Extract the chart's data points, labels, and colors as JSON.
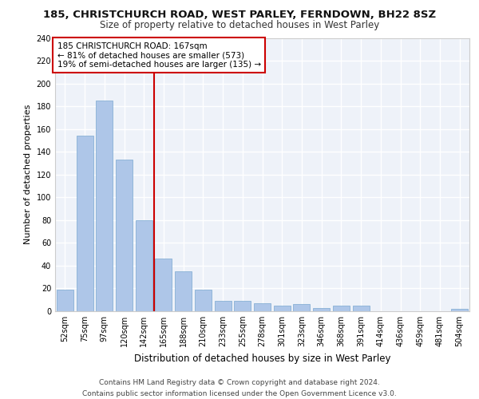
{
  "title_line1": "185, CHRISTCHURCH ROAD, WEST PARLEY, FERNDOWN, BH22 8SZ",
  "title_line2": "Size of property relative to detached houses in West Parley",
  "xlabel": "Distribution of detached houses by size in West Parley",
  "ylabel": "Number of detached properties",
  "categories": [
    "52sqm",
    "75sqm",
    "97sqm",
    "120sqm",
    "142sqm",
    "165sqm",
    "188sqm",
    "210sqm",
    "233sqm",
    "255sqm",
    "278sqm",
    "301sqm",
    "323sqm",
    "346sqm",
    "368sqm",
    "391sqm",
    "414sqm",
    "436sqm",
    "459sqm",
    "481sqm",
    "504sqm"
  ],
  "values": [
    19,
    154,
    185,
    133,
    80,
    46,
    35,
    19,
    9,
    9,
    7,
    5,
    6,
    3,
    5,
    5,
    0,
    0,
    0,
    0,
    2
  ],
  "bar_color": "#aec6e8",
  "bar_edge_color": "#7aa8d0",
  "vline_x_index": 5,
  "vline_color": "#cc0000",
  "annotation_text": "185 CHRISTCHURCH ROAD: 167sqm\n← 81% of detached houses are smaller (573)\n19% of semi-detached houses are larger (135) →",
  "annotation_box_color": "#ffffff",
  "annotation_box_edge": "#cc0000",
  "ylim": [
    0,
    240
  ],
  "yticks": [
    0,
    20,
    40,
    60,
    80,
    100,
    120,
    140,
    160,
    180,
    200,
    220,
    240
  ],
  "footer": "Contains HM Land Registry data © Crown copyright and database right 2024.\nContains public sector information licensed under the Open Government Licence v3.0.",
  "bg_color": "#eef2f9",
  "grid_color": "#ffffff",
  "title_fontsize": 9.5,
  "subtitle_fontsize": 8.5,
  "axis_label_fontsize": 8,
  "tick_fontsize": 7,
  "annotation_fontsize": 7.5,
  "footer_fontsize": 6.5
}
